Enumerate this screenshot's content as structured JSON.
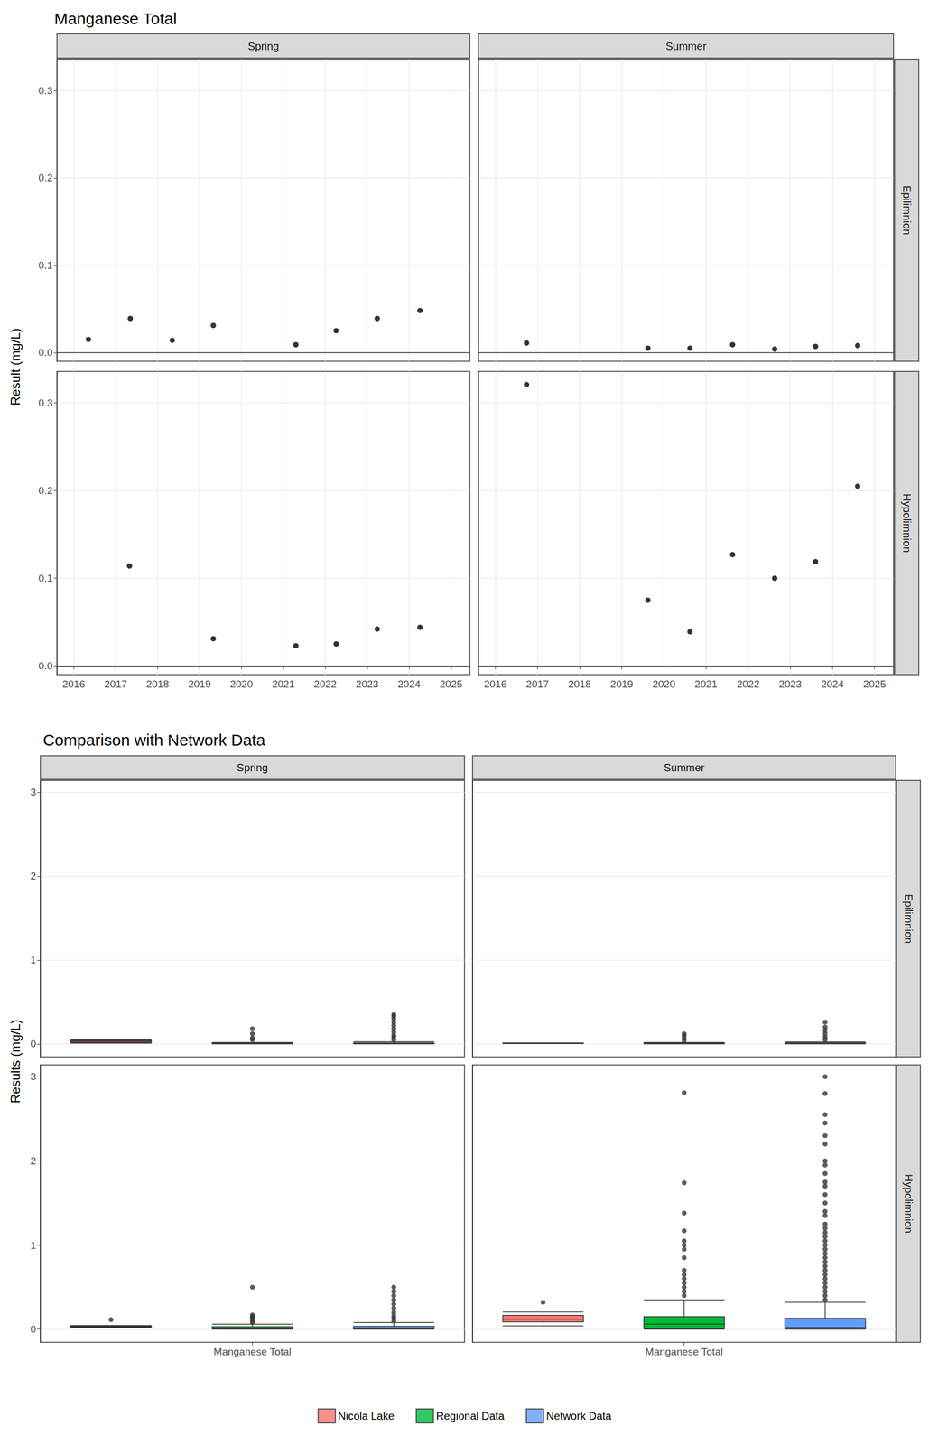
{
  "chart_data": [
    {
      "type": "scatter",
      "title": "Manganese Total",
      "y_label": "Result (mg/L)",
      "columns": [
        "Spring",
        "Summer"
      ],
      "rows": [
        "Epilimnion",
        "Hypolimnion"
      ],
      "xlim": [
        2015.6,
        2025.45
      ],
      "xticks": [
        2016,
        2017,
        2018,
        2019,
        2020,
        2021,
        2022,
        2023,
        2024,
        2025
      ],
      "ylim": [
        -0.01,
        0.336
      ],
      "yticks": [
        {
          "value": 0,
          "label": "0.0"
        },
        {
          "value": 0.1,
          "label": "0.1"
        },
        {
          "value": 0.2,
          "label": "0.2"
        },
        {
          "value": 0.3,
          "label": "0.3"
        }
      ],
      "grid": true,
      "color": "#000000",
      "marker": "circle",
      "panels": [
        {
          "column": "Spring",
          "row": "Epilimnion",
          "x": [
            2016.35,
            2017.35,
            2018.35,
            2019.33,
            2021.3,
            2022.26,
            2023.24,
            2024.26
          ],
          "values": [
            0.015,
            0.039,
            0.014,
            0.031,
            0.009,
            0.025,
            0.039,
            0.048
          ]
        },
        {
          "column": "Summer",
          "row": "Epilimnion",
          "x": [
            2016.74,
            2019.62,
            2020.62,
            2021.63,
            2022.63,
            2023.6,
            2024.6
          ],
          "values": [
            0.011,
            0.005,
            0.005,
            0.009,
            0.004,
            0.007,
            0.008
          ]
        },
        {
          "column": "Spring",
          "row": "Hypolimnion",
          "x": [
            2017.33,
            2019.33,
            2021.3,
            2022.26,
            2023.24,
            2024.26
          ],
          "values": [
            0.114,
            0.031,
            0.023,
            0.025,
            0.042,
            0.044
          ]
        },
        {
          "column": "Summer",
          "row": "Hypolimnion",
          "x": [
            2016.74,
            2019.62,
            2020.62,
            2021.63,
            2022.63,
            2023.6,
            2024.6
          ],
          "values": [
            0.321,
            0.075,
            0.039,
            0.127,
            0.1,
            0.119,
            0.205
          ]
        }
      ]
    },
    {
      "type": "boxplot",
      "title": "Comparison with Network Data",
      "y_label": "Results (mg/L)",
      "columns": [
        "Spring",
        "Summer"
      ],
      "rows": [
        "Epilimnion",
        "Hypolimnion"
      ],
      "categories": [
        "Manganese Total"
      ],
      "ylim": [
        -0.155,
        3.14
      ],
      "yticks": [
        0,
        1,
        2,
        3
      ],
      "grid": true,
      "legend": "bottom",
      "series": [
        {
          "name": "Nicola Lake",
          "color": "#F8766D"
        },
        {
          "name": "Regional Data",
          "color": "#00BA38"
        },
        {
          "name": "Network Data",
          "color": "#619CFF"
        }
      ],
      "panels": [
        {
          "column": "Spring",
          "row": "Epilimnion",
          "boxes": [
            {
              "series": "Nicola Lake",
              "min": 0.009,
              "q1": 0.0145,
              "median": 0.028,
              "q3": 0.039,
              "max": 0.048,
              "outliers": []
            },
            {
              "series": "Regional Data",
              "min": 0.001,
              "q1": 0.002,
              "median": 0.004,
              "q3": 0.008,
              "max": 0.016,
              "outliers": [
                0.05,
                0.07,
                0.12,
                0.18
              ]
            },
            {
              "series": "Network Data",
              "min": 0.001,
              "q1": 0.003,
              "median": 0.006,
              "q3": 0.012,
              "max": 0.026,
              "outliers": [
                0.05,
                0.08,
                0.1,
                0.14,
                0.18,
                0.22,
                0.26,
                0.3,
                0.33,
                0.35
              ]
            }
          ]
        },
        {
          "column": "Summer",
          "row": "Epilimnion",
          "boxes": [
            {
              "series": "Nicola Lake",
              "min": 0.004,
              "q1": 0.005,
              "median": 0.007,
              "q3": 0.0085,
              "max": 0.011,
              "outliers": []
            },
            {
              "series": "Regional Data",
              "min": 0.001,
              "q1": 0.002,
              "median": 0.004,
              "q3": 0.008,
              "max": 0.016,
              "outliers": [
                0.04,
                0.07,
                0.1,
                0.12
              ]
            },
            {
              "series": "Network Data",
              "min": 0.001,
              "q1": 0.003,
              "median": 0.005,
              "q3": 0.011,
              "max": 0.023,
              "outliers": [
                0.05,
                0.08,
                0.12,
                0.16,
                0.2,
                0.26
              ]
            }
          ]
        },
        {
          "column": "Spring",
          "row": "Hypolimnion",
          "boxes": [
            {
              "series": "Nicola Lake",
              "min": 0.023,
              "q1": 0.0265,
              "median": 0.0365,
              "q3": 0.0435,
              "max": 0.044,
              "outliers": [
                0.114
              ]
            },
            {
              "series": "Regional Data",
              "min": 0.001,
              "q1": 0.005,
              "median": 0.012,
              "q3": 0.03,
              "max": 0.06,
              "outliers": [
                0.08,
                0.1,
                0.13,
                0.15,
                0.17,
                0.5
              ]
            },
            {
              "series": "Network Data",
              "min": 0.001,
              "q1": 0.005,
              "median": 0.014,
              "q3": 0.035,
              "max": 0.08,
              "outliers": [
                0.1,
                0.13,
                0.16,
                0.2,
                0.25,
                0.3,
                0.35,
                0.4,
                0.45,
                0.5
              ]
            }
          ]
        },
        {
          "column": "Summer",
          "row": "Hypolimnion",
          "boxes": [
            {
              "series": "Nicola Lake",
              "min": 0.039,
              "q1": 0.0875,
              "median": 0.119,
              "q3": 0.166,
              "max": 0.205,
              "outliers": [
                0.321
              ]
            },
            {
              "series": "Regional Data",
              "min": 0.001,
              "q1": 0.01,
              "median": 0.06,
              "q3": 0.15,
              "max": 0.35,
              "outliers": [
                0.4,
                0.45,
                0.5,
                0.55,
                0.6,
                0.65,
                0.7,
                0.85,
                0.95,
                1.0,
                1.05,
                1.17,
                1.38,
                1.74,
                2.81
              ]
            },
            {
              "series": "Network Data",
              "min": 0.001,
              "q1": 0.005,
              "median": 0.02,
              "q3": 0.13,
              "max": 0.32,
              "outliers": [
                0.35,
                0.4,
                0.45,
                0.5,
                0.55,
                0.6,
                0.65,
                0.7,
                0.75,
                0.8,
                0.85,
                0.9,
                0.95,
                1.0,
                1.05,
                1.1,
                1.15,
                1.2,
                1.25,
                1.35,
                1.4,
                1.5,
                1.6,
                1.7,
                1.75,
                1.85,
                1.95,
                2.0,
                2.2,
                2.3,
                2.45,
                2.55,
                2.8,
                3.0
              ]
            }
          ]
        }
      ]
    }
  ]
}
